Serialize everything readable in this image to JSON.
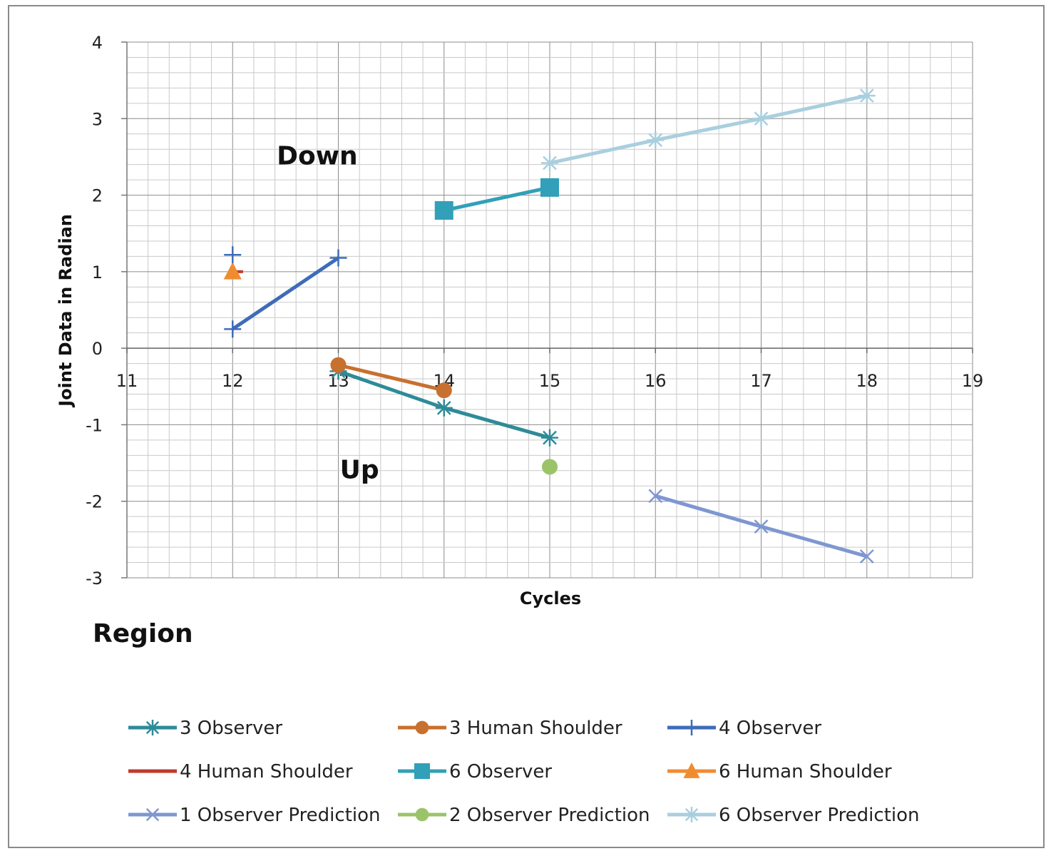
{
  "chart_data": {
    "type": "line",
    "title": "",
    "xlabel": "Cycles",
    "ylabel": "Joint Data in Radian",
    "xlim": [
      11,
      19
    ],
    "ylim": [
      -3,
      4
    ],
    "x_ticks": [
      11,
      12,
      13,
      14,
      15,
      16,
      17,
      18,
      19
    ],
    "y_ticks": [
      -3,
      -2,
      -1,
      0,
      1,
      2,
      3,
      4
    ],
    "grid": true,
    "minor_grid": true,
    "legend_position": "bottom",
    "annotations": [
      {
        "text": "Down",
        "x": 12.8,
        "y": 2.4
      },
      {
        "text": "Up",
        "x": 13.2,
        "y": -1.7
      }
    ],
    "series": [
      {
        "name": "3 Observer",
        "color": "#2E8B97",
        "marker": "asterisk",
        "x": [
          13,
          14,
          15
        ],
        "y": [
          -0.3,
          -0.78,
          -1.17
        ]
      },
      {
        "name": "3 Human Shoulder",
        "color": "#C8702E",
        "marker": "circle",
        "x": [
          13,
          14
        ],
        "y": [
          -0.22,
          -0.55
        ]
      },
      {
        "name": "4 Observer",
        "color": "#3E6CB8",
        "marker": "plus",
        "x": [
          12,
          13
        ],
        "y": [
          0.25,
          1.18
        ]
      },
      {
        "name": "4 Human Shoulder",
        "color": "#C0392B",
        "marker": "dash",
        "x": [
          12.05
        ],
        "y": [
          1.0
        ]
      },
      {
        "name": "6 Observer",
        "color": "#31A0B8",
        "marker": "square",
        "x": [
          14,
          15
        ],
        "y": [
          1.8,
          2.1
        ]
      },
      {
        "name": "6 Human Shoulder",
        "color": "#F08C30",
        "marker": "triangle",
        "x": [
          12
        ],
        "y": [
          1.0
        ]
      },
      {
        "name": "1 Observer Prediction",
        "color": "#7E97D2",
        "marker": "x",
        "x": [
          16,
          17,
          18
        ],
        "y": [
          -1.93,
          -2.33,
          -2.72
        ]
      },
      {
        "name": "2 Observer Prediction",
        "color": "#9BC46A",
        "marker": "circle",
        "x": [
          15
        ],
        "y": [
          -1.55
        ]
      },
      {
        "name": "6 Observer Prediction",
        "color": "#A9CFDF",
        "marker": "asterisk",
        "x": [
          15,
          16,
          17,
          18
        ],
        "y": [
          2.42,
          2.72,
          3.0,
          3.3
        ]
      },
      {
        "name": "",
        "color": "#3E6CB8",
        "marker": "plus",
        "x": [
          12
        ],
        "y": [
          1.22
        ]
      }
    ]
  },
  "region_label": "Region"
}
